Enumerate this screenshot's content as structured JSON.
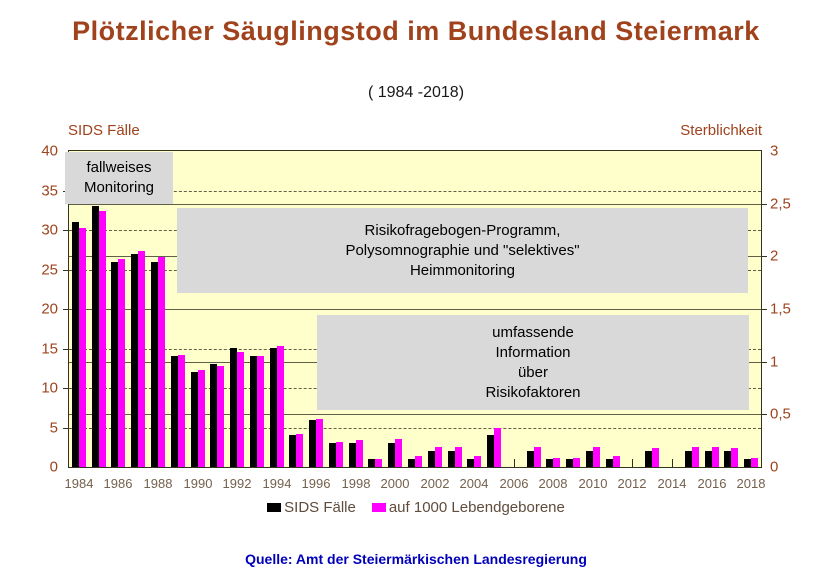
{
  "title": "Plötzlicher Säuglingstod im Bundesland Steiermark",
  "subtitle": "( 1984 -2018)",
  "left_axis_title": "SIDS Fälle",
  "right_axis_title": "Sterblichkeit",
  "source": "Quelle: Amt der Steiermärkischen Landesregierung",
  "legend": [
    {
      "label": "SIDS Fälle",
      "color": "#000000"
    },
    {
      "label": "auf 1000 Lebendgeborene",
      "color": "#ff00ff"
    }
  ],
  "annotations": [
    {
      "text": "fallweises\nMonitoring"
    },
    {
      "text": "Risikofragebogen-Programm,\nPolysomnographie und \"selektives\"\nHeimmonitoring"
    },
    {
      "text": "umfassende\nInformation\nüber\nRisikofaktoren"
    }
  ],
  "colors": {
    "title_brown": "#a0421c",
    "plot_background": "#ffffcc",
    "annotation_gray": "#d9d9d9",
    "bar_black": "#000000",
    "bar_magenta": "#ff00ff",
    "source_blue": "#0000bb"
  },
  "chart_data": {
    "type": "bar",
    "categories": [
      1984,
      1985,
      1986,
      1987,
      1988,
      1989,
      1990,
      1991,
      1992,
      1993,
      1994,
      1995,
      1996,
      1997,
      1998,
      1999,
      2000,
      2001,
      2002,
      2003,
      2004,
      2005,
      2006,
      2007,
      2008,
      2009,
      2010,
      2011,
      2012,
      2013,
      2014,
      2015,
      2016,
      2017,
      2018
    ],
    "series": [
      {
        "name": "SIDS Fälle",
        "axis": "left",
        "color": "#000000",
        "values": [
          31,
          33,
          26,
          27,
          26,
          14,
          12,
          13,
          15,
          14,
          15,
          4,
          6,
          3,
          3,
          1,
          3,
          1,
          2,
          2,
          1,
          4,
          0,
          2,
          1,
          1,
          2,
          1,
          0,
          2,
          0,
          2,
          2,
          2,
          1
        ]
      },
      {
        "name": "auf 1000 Lebendgeborene",
        "axis": "right",
        "color": "#ff00ff",
        "values": [
          2.27,
          2.43,
          1.97,
          2.05,
          1.99,
          1.06,
          0.92,
          0.96,
          1.09,
          1.05,
          1.15,
          0.31,
          0.46,
          0.24,
          0.26,
          0.08,
          0.27,
          0.1,
          0.19,
          0.19,
          0.1,
          0.37,
          0,
          0.19,
          0.09,
          0.09,
          0.19,
          0.1,
          0,
          0.18,
          0,
          0.19,
          0.19,
          0.18,
          0.09
        ]
      }
    ],
    "left_axis": {
      "min": 0,
      "max": 40,
      "tick_step": 5,
      "tick_labels": [
        "40",
        "35",
        "30",
        "25",
        "20",
        "15",
        "10",
        "5",
        "0"
      ]
    },
    "right_axis": {
      "min": 0,
      "max": 3,
      "tick_step": 0.5,
      "tick_labels": [
        "3",
        "2,5",
        "2",
        "1,5",
        "1",
        "0,5",
        "0"
      ]
    },
    "x_tick_labels": [
      "1984",
      "1986",
      "1988",
      "1990",
      "1992",
      "1994",
      "1996",
      "1998",
      "2000",
      "2002",
      "2004",
      "2006",
      "2008",
      "2010",
      "2012",
      "2014",
      "2016",
      "2018"
    ],
    "grid": {
      "solid_right_axis_steps": [
        0.5,
        1,
        1.5,
        2,
        2.5
      ],
      "dashed_left_axis_steps": [
        5,
        10,
        15,
        25,
        30,
        35
      ]
    },
    "legend_position": "bottom"
  }
}
